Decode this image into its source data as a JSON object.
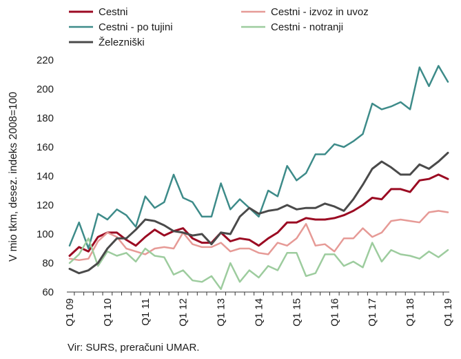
{
  "chart_data": {
    "type": "line",
    "ylabel": "V mio tkm, desez. indeks 2008=100",
    "ylim": [
      60,
      220
    ],
    "yticks": [
      60,
      80,
      100,
      120,
      140,
      160,
      180,
      200,
      220
    ],
    "xtick_labels": [
      "Q1 09",
      "Q1 10",
      "Q1 11",
      "Q1 12",
      "Q1 13",
      "Q1 14",
      "Q1 15",
      "Q1 16",
      "Q1 17",
      "Q1 18",
      "Q1 19"
    ],
    "x": [
      "Q1 09",
      "Q2 09",
      "Q3 09",
      "Q4 09",
      "Q1 10",
      "Q2 10",
      "Q3 10",
      "Q4 10",
      "Q1 11",
      "Q2 11",
      "Q3 11",
      "Q4 11",
      "Q1 12",
      "Q2 12",
      "Q3 12",
      "Q4 12",
      "Q1 13",
      "Q2 13",
      "Q3 13",
      "Q4 13",
      "Q1 14",
      "Q2 14",
      "Q3 14",
      "Q4 14",
      "Q1 15",
      "Q2 15",
      "Q3 15",
      "Q4 15",
      "Q1 16",
      "Q2 16",
      "Q3 16",
      "Q4 16",
      "Q1 17",
      "Q2 17",
      "Q3 17",
      "Q4 17",
      "Q1 18",
      "Q2 18",
      "Q3 18",
      "Q4 18",
      "Q1 19"
    ],
    "legend_position": "top",
    "grid": false,
    "series": [
      {
        "name": "Cestni",
        "color": "#9b0a22",
        "width": 3,
        "values": [
          85,
          91,
          88,
          98,
          101,
          101,
          96,
          92,
          98,
          103,
          99,
          102,
          104,
          97,
          94,
          94,
          101,
          95,
          97,
          96,
          92,
          97,
          101,
          108,
          108,
          111,
          110,
          110,
          111,
          113,
          116,
          120,
          125,
          124,
          131,
          131,
          129,
          137,
          138,
          141,
          138
        ]
      },
      {
        "name": "Cestni - izvoz in uvoz",
        "color": "#e69a96",
        "width": 2.5,
        "values": [
          83,
          82,
          83,
          95,
          101,
          98,
          90,
          88,
          86,
          90,
          91,
          90,
          101,
          93,
          91,
          91,
          94,
          88,
          90,
          90,
          87,
          86,
          94,
          92,
          97,
          107,
          92,
          93,
          88,
          97,
          97,
          104,
          98,
          101,
          109,
          110,
          109,
          108,
          115,
          116,
          115
        ]
      },
      {
        "name": "Cestni - po tujini",
        "color": "#3d8b89",
        "width": 2.5,
        "values": [
          92,
          108,
          90,
          114,
          110,
          117,
          113,
          105,
          126,
          118,
          122,
          141,
          125,
          122,
          112,
          112,
          135,
          117,
          124,
          118,
          112,
          130,
          126,
          147,
          137,
          142,
          155,
          155,
          162,
          160,
          164,
          169,
          190,
          186,
          188,
          191,
          186,
          215,
          202,
          216,
          205
        ]
      },
      {
        "name": "Cestni - notranji",
        "color": "#9dcc9e",
        "width": 2.5,
        "values": [
          80,
          86,
          97,
          78,
          88,
          85,
          87,
          81,
          90,
          85,
          84,
          72,
          75,
          68,
          67,
          71,
          62,
          80,
          67,
          75,
          70,
          78,
          75,
          87,
          87,
          71,
          73,
          86,
          86,
          78,
          81,
          77,
          94,
          81,
          89,
          86,
          85,
          83,
          88,
          84,
          89
        ]
      },
      {
        "name": "Železniški",
        "color": "#4a4a4a",
        "width": 3,
        "values": [
          76,
          73,
          75,
          80,
          90,
          97,
          97,
          103,
          110,
          109,
          106,
          102,
          101,
          99,
          100,
          93,
          101,
          100,
          112,
          118,
          114,
          116,
          117,
          120,
          117,
          118,
          118,
          121,
          119,
          116,
          124,
          134,
          145,
          150,
          146,
          141,
          141,
          148,
          145,
          150,
          156
        ]
      }
    ]
  },
  "legend": {
    "items": [
      "Cestni",
      "Cestni - izvoz in uvoz",
      "Cestni - po tujini",
      "Cestni - notranji",
      "Železniški"
    ]
  },
  "source": "Vir: SURS, preračuni UMAR."
}
